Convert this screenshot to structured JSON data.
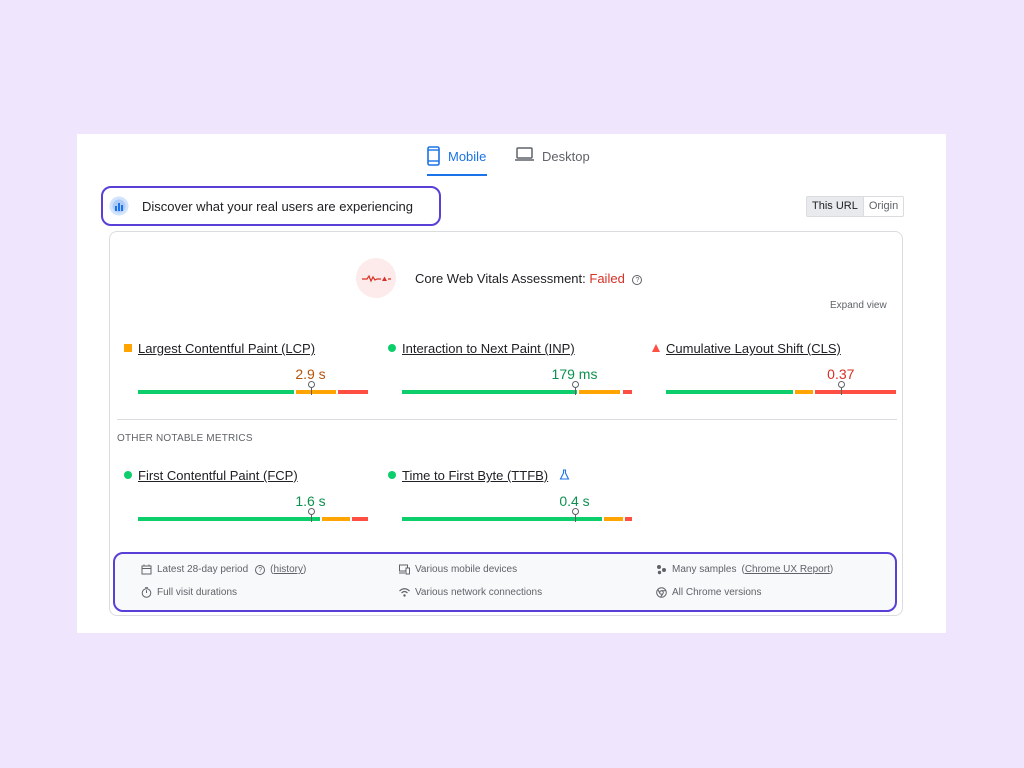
{
  "tabs": [
    {
      "label": "Mobile",
      "icon": "smartphone-icon",
      "active": true
    },
    {
      "label": "Desktop",
      "icon": "laptop-icon",
      "active": false
    }
  ],
  "header": {
    "title": "Discover what your real users are experiencing",
    "icon": "crux-icon"
  },
  "scope_toggle": {
    "options": [
      "This URL",
      "Origin"
    ],
    "selected": "This URL"
  },
  "assessment": {
    "label": "Core Web Vitals Assessment:",
    "status": "Failed",
    "status_color": "#d93025",
    "help_icon": "help-icon"
  },
  "expand_label": "Expand view",
  "core_metrics": [
    {
      "name": "Largest Contentful Paint (LCP)",
      "value": "2.9 s",
      "rating": "needs-improvement",
      "shape": "square",
      "distribution": [
        0.68,
        0.18,
        0.14
      ],
      "marker": 0.75
    },
    {
      "name": "Interaction to Next Paint (INP)",
      "value": "179 ms",
      "rating": "good",
      "shape": "circle",
      "distribution": [
        0.76,
        0.19,
        0.05
      ],
      "marker": 0.75
    },
    {
      "name": "Cumulative Layout Shift (CLS)",
      "value": "0.37",
      "rating": "poor",
      "shape": "triangle",
      "distribution": [
        0.55,
        0.09,
        0.36
      ],
      "marker": 0.76
    }
  ],
  "other_metrics_title": "OTHER NOTABLE METRICS",
  "other_metrics": [
    {
      "name": "First Contentful Paint (FCP)",
      "value": "1.6 s",
      "rating": "good",
      "shape": "circle",
      "distribution": [
        0.79,
        0.13,
        0.08
      ],
      "marker": 0.75,
      "experimental": false
    },
    {
      "name": "Time to First Byte (TTFB)",
      "value": "0.4 s",
      "rating": "good",
      "shape": "circle",
      "distribution": [
        0.87,
        0.09,
        0.04
      ],
      "marker": 0.75,
      "experimental": true
    }
  ],
  "footer": {
    "period_label": "Latest 28-day period",
    "history_link": "history",
    "devices": "Various mobile devices",
    "samples_label": "Many samples",
    "samples_link": "Chrome UX Report",
    "durations": "Full visit durations",
    "network": "Various network connections",
    "chrome": "All Chrome versions"
  },
  "colors": {
    "accent": "#1a73e8",
    "good": "#0cce6b",
    "average": "#ffa400",
    "poor": "#ff4e42",
    "highlight": "#5a3fd6"
  }
}
